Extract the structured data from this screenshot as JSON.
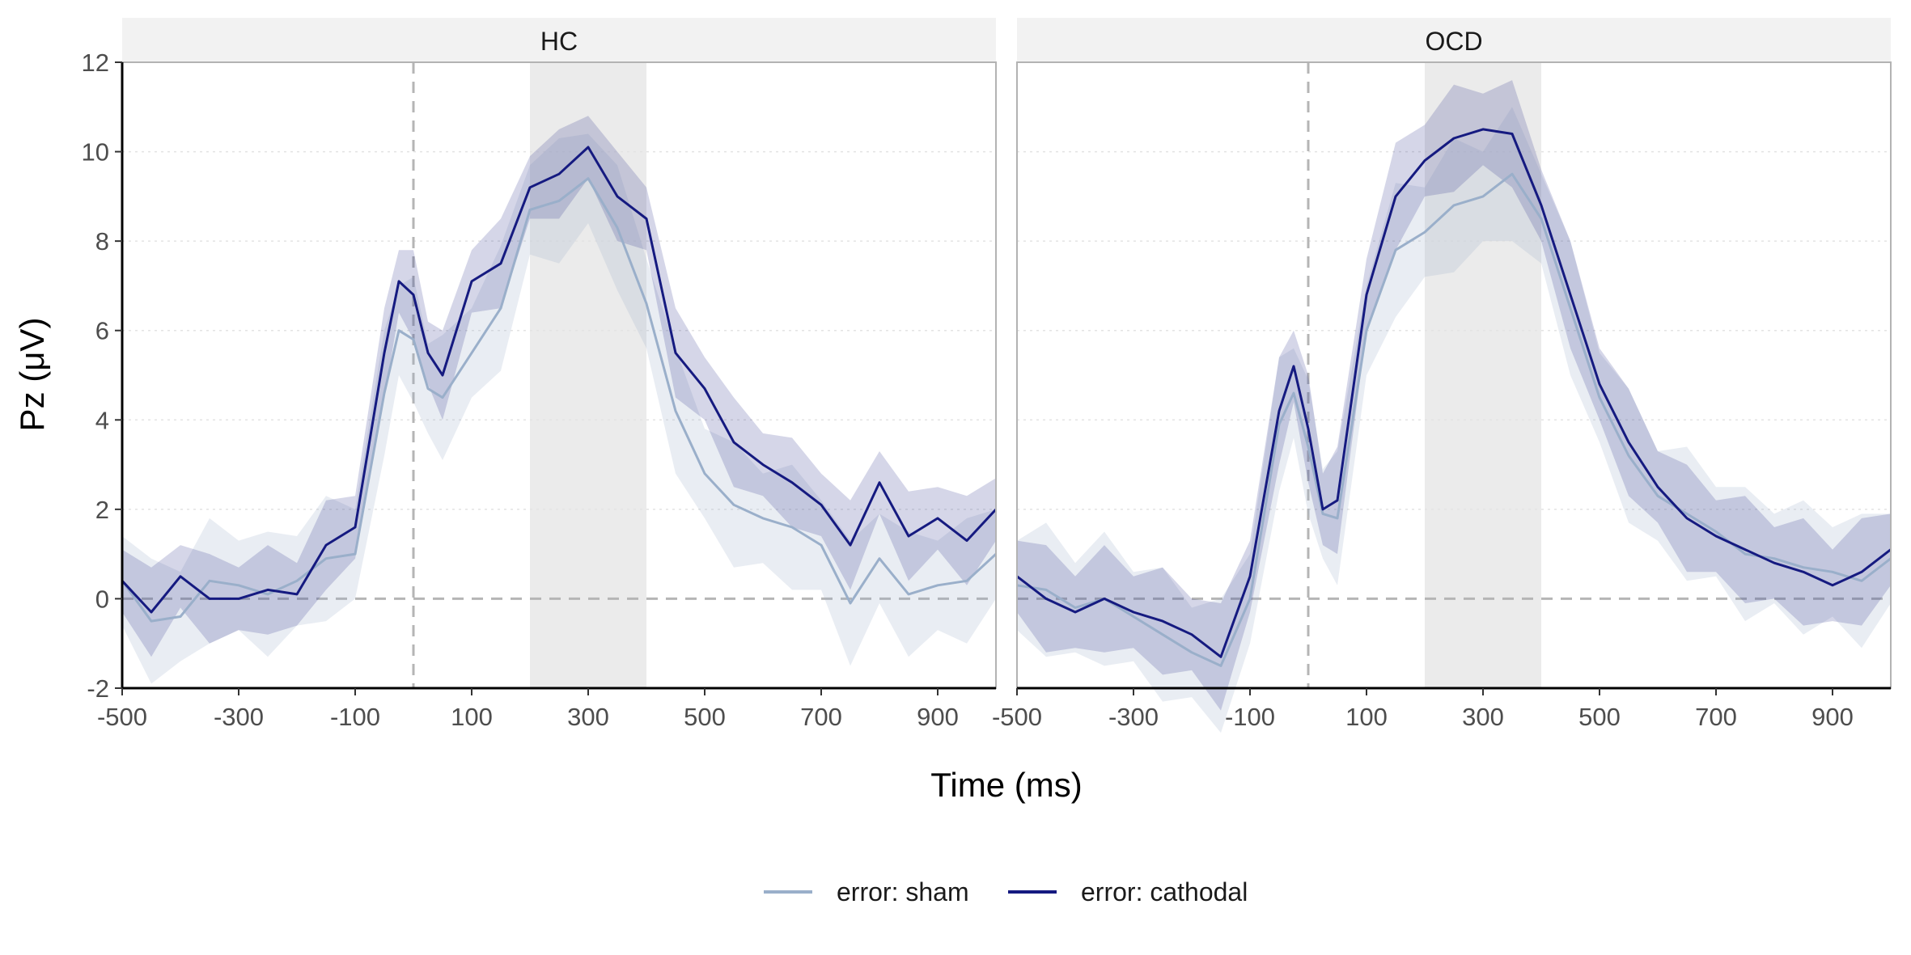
{
  "chart_data": {
    "type": "line",
    "xlabel": "Time (ms)",
    "ylabel": "Pz (μV)",
    "xlim": [
      -500,
      1000
    ],
    "ylim": [
      -2,
      12
    ],
    "x_ticks": [
      "-500",
      "-300",
      "-100",
      "100",
      "300",
      "500",
      "700",
      "900"
    ],
    "y_ticks": [
      "-2",
      "0",
      "2",
      "4",
      "6",
      "8",
      "10",
      "12"
    ],
    "shaded_window_ms": [
      200,
      400
    ],
    "reference_lines": {
      "x": 0,
      "y": 0
    },
    "grid": "horizontal dotted",
    "legend_position": "bottom",
    "colors": {
      "sham": "#9aafca",
      "cathodal": "#151a80",
      "window": "#ebebeb",
      "strip": "#f2f2f2"
    },
    "legend": [
      {
        "label": "error: sham",
        "color": "#9aafca"
      },
      {
        "label": "error: cathodal",
        "color": "#151a80"
      }
    ],
    "x": [
      -500,
      -450,
      -400,
      -350,
      -300,
      -250,
      -200,
      -150,
      -100,
      -50,
      -25,
      0,
      25,
      50,
      100,
      150,
      200,
      250,
      300,
      350,
      400,
      450,
      500,
      550,
      600,
      650,
      700,
      750,
      800,
      850,
      900,
      950,
      1000
    ],
    "panels": [
      {
        "title": "HC",
        "series": [
          {
            "name": "error: sham",
            "values": [
              0.4,
              -0.5,
              -0.4,
              0.4,
              0.3,
              0.1,
              0.4,
              0.9,
              1.0,
              4.6,
              6.0,
              5.8,
              4.7,
              4.5,
              5.5,
              6.5,
              8.7,
              8.9,
              9.4,
              8.3,
              6.6,
              4.2,
              2.8,
              2.1,
              1.8,
              1.6,
              1.2,
              -0.1,
              0.9,
              0.1,
              0.3,
              0.4,
              1.0
            ],
            "band": [
              1.0,
              1.4
            ]
          },
          {
            "name": "error: cathodal",
            "values": [
              0.4,
              -0.3,
              0.5,
              0.0,
              0.0,
              0.2,
              0.1,
              1.2,
              1.6,
              5.5,
              7.1,
              6.8,
              5.5,
              5.0,
              7.1,
              7.5,
              9.2,
              9.5,
              10.1,
              9.0,
              8.5,
              5.5,
              4.7,
              3.5,
              3.0,
              2.6,
              2.1,
              1.2,
              2.6,
              1.4,
              1.8,
              1.3,
              2.0
            ],
            "band": [
              0.7,
              1.0
            ]
          }
        ]
      },
      {
        "title": "OCD",
        "series": [
          {
            "name": "error: sham",
            "values": [
              0.3,
              0.2,
              -0.2,
              0.0,
              -0.4,
              -0.8,
              -1.2,
              -1.5,
              0.0,
              3.9,
              4.6,
              3.4,
              1.9,
              1.8,
              6.0,
              7.8,
              8.2,
              8.8,
              9.0,
              9.5,
              8.5,
              6.5,
              4.5,
              3.2,
              2.3,
              1.9,
              1.5,
              1.0,
              0.9,
              0.7,
              0.6,
              0.4,
              0.9
            ],
            "band": [
              1.0,
              1.5
            ]
          },
          {
            "name": "error: cathodal",
            "values": [
              0.5,
              0.0,
              -0.3,
              0.0,
              -0.3,
              -0.5,
              -0.8,
              -1.3,
              0.5,
              4.2,
              5.2,
              3.8,
              2.0,
              2.2,
              6.8,
              9.0,
              9.8,
              10.3,
              10.5,
              10.4,
              8.8,
              6.8,
              4.8,
              3.5,
              2.5,
              1.8,
              1.4,
              1.1,
              0.8,
              0.6,
              0.3,
              0.6,
              1.1
            ],
            "band": [
              0.8,
              1.2
            ]
          }
        ]
      }
    ]
  }
}
